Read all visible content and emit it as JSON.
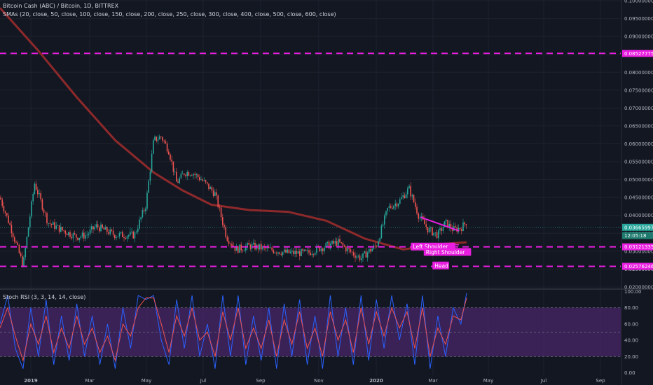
{
  "header": {
    "title": "Bitcoin Cash (ABC) / Bitcoin, 1D, BITTREX",
    "sma_label": "SMAs (20, close, 50, close, 100, close, 150, close, 200, close, 250, close, 300, close, 400, close, 500, close, 600, close)"
  },
  "rsi_panel": {
    "title": "Stoch RSI (3, 3, 14, 14, close)"
  },
  "colors": {
    "background": "#131722",
    "grid": "#1e222d",
    "up_candle": "#26a69a",
    "down_candle": "#ef5350",
    "dashed_level": "#e91ee0",
    "sma_long": "#9b2b2b",
    "stoch_k": "#2962ff",
    "stoch_d": "#ef5350",
    "rsi_band": "#5b2c83",
    "label_bg": "#e91ee0"
  },
  "chart_data": [
    {
      "type": "candlestick",
      "xlabel": "",
      "ylabel": "",
      "x_ticks": [
        "2019",
        "Mar",
        "May",
        "Jul",
        "Sep",
        "Nov",
        "2020",
        "Mar",
        "May",
        "Jul",
        "Sep"
      ],
      "y_ticks": [
        "0.10000000",
        "0.09500000",
        "0.09000000",
        "0.08500000",
        "0.08000000",
        "0.07500000",
        "0.07000000",
        "0.06500000",
        "0.06000000",
        "0.05500000",
        "0.05000000",
        "0.04500000",
        "0.04000000",
        "0.03500000",
        "0.03000000",
        "0.02500000",
        "0.02000000"
      ],
      "ylim": [
        0.0196,
        0.1002
      ],
      "price_path": [
        [
          0,
          0.045
        ],
        [
          0.6,
          0.036
        ],
        [
          1.2,
          0.026
        ],
        [
          1.8,
          0.049
        ],
        [
          2.5,
          0.038
        ],
        [
          3.2,
          0.036
        ],
        [
          4.0,
          0.034
        ],
        [
          4.5,
          0.0345
        ],
        [
          5.0,
          0.037
        ],
        [
          6.0,
          0.0345
        ],
        [
          7.0,
          0.0345
        ],
        [
          7.6,
          0.043
        ],
        [
          8.0,
          0.061
        ],
        [
          8.4,
          0.062
        ],
        [
          8.8,
          0.058
        ],
        [
          9.2,
          0.049
        ],
        [
          9.6,
          0.052
        ],
        [
          10.0,
          0.052
        ],
        [
          10.5,
          0.05
        ],
        [
          11.2,
          0.046
        ],
        [
          11.8,
          0.034
        ],
        [
          12.3,
          0.0305
        ],
        [
          13.0,
          0.0315
        ],
        [
          14.0,
          0.0305
        ],
        [
          15.0,
          0.0295
        ],
        [
          16.0,
          0.0295
        ],
        [
          17.0,
          0.0315
        ],
        [
          17.6,
          0.0325
        ],
        [
          18.2,
          0.03
        ],
        [
          18.8,
          0.028
        ],
        [
          19.2,
          0.03
        ],
        [
          19.6,
          0.0315
        ],
        [
          20.2,
          0.042
        ],
        [
          20.8,
          0.044
        ],
        [
          21.3,
          0.0475
        ],
        [
          21.8,
          0.04
        ],
        [
          22.3,
          0.036
        ],
        [
          22.8,
          0.0345
        ],
        [
          23.2,
          0.038
        ],
        [
          23.6,
          0.036
        ],
        [
          24.0,
          0.0365
        ],
        [
          24.3,
          0.0382
        ]
      ],
      "series": [
        {
          "name": "SMA",
          "values": [
            [
              0,
              0.098
            ],
            [
              2,
              0.086
            ],
            [
              4,
              0.073
            ],
            [
              6,
              0.061
            ],
            [
              8,
              0.052
            ],
            [
              9.5,
              0.047
            ],
            [
              11,
              0.043
            ],
            [
              13,
              0.0415
            ],
            [
              15,
              0.041
            ],
            [
              17,
              0.0385
            ],
            [
              19,
              0.0335
            ],
            [
              21,
              0.0305
            ],
            [
              23,
              0.032
            ],
            [
              24.3,
              0.0325
            ]
          ]
        }
      ],
      "levels": [
        {
          "value": 0.08527775,
          "label": "0.08527775"
        },
        {
          "value": 0.03121335,
          "label": "0.03121335"
        },
        {
          "value": 0.02576246,
          "label": "0.02576246"
        }
      ],
      "price_labels": [
        {
          "value": 0.03665997,
          "label": "0.03665997"
        },
        {
          "value": 0.03436,
          "label": "12:05:18"
        }
      ],
      "annotations": [
        {
          "text": "Left Shoulder",
          "x": 22.55,
          "y": 0.0312
        },
        {
          "text": "Right Shoulder",
          "x": 23.3,
          "y": 0.0297
        },
        {
          "text": "Head",
          "x": 22.95,
          "y": 0.0259
        }
      ]
    },
    {
      "type": "line",
      "title": "Stoch RSI (3, 3, 14, 14, close)",
      "ylim": [
        -3,
        102
      ],
      "y_ticks": [
        "100.00",
        "80.00",
        "60.00",
        "40.00",
        "20.00",
        "0.00"
      ],
      "band": [
        20,
        80
      ],
      "series": [
        {
          "name": "K",
          "values": [
            [
              0,
              60
            ],
            [
              0.4,
              95
            ],
            [
              0.8,
              30
            ],
            [
              1.2,
              5
            ],
            [
              1.6,
              80
            ],
            [
              2.0,
              20
            ],
            [
              2.4,
              90
            ],
            [
              2.8,
              10
            ],
            [
              3.2,
              70
            ],
            [
              3.6,
              15
            ],
            [
              4.0,
              85
            ],
            [
              4.4,
              20
            ],
            [
              4.8,
              70
            ],
            [
              5.2,
              10
            ],
            [
              5.6,
              60
            ],
            [
              6.0,
              5
            ],
            [
              6.4,
              80
            ],
            [
              6.8,
              30
            ],
            [
              7.2,
              95
            ],
            [
              7.6,
              90
            ],
            [
              8.0,
              95
            ],
            [
              8.4,
              40
            ],
            [
              8.8,
              10
            ],
            [
              9.2,
              90
            ],
            [
              9.6,
              30
            ],
            [
              10.0,
              95
            ],
            [
              10.4,
              20
            ],
            [
              10.8,
              60
            ],
            [
              11.2,
              5
            ],
            [
              11.6,
              95
            ],
            [
              12.0,
              20
            ],
            [
              12.4,
              95
            ],
            [
              12.8,
              10
            ],
            [
              13.2,
              70
            ],
            [
              13.6,
              15
            ],
            [
              14.0,
              80
            ],
            [
              14.4,
              5
            ],
            [
              14.8,
              85
            ],
            [
              15.2,
              20
            ],
            [
              15.6,
              90
            ],
            [
              16.0,
              10
            ],
            [
              16.4,
              70
            ],
            [
              16.8,
              5
            ],
            [
              17.2,
              95
            ],
            [
              17.6,
              20
            ],
            [
              18.0,
              80
            ],
            [
              18.4,
              10
            ],
            [
              18.8,
              95
            ],
            [
              19.2,
              15
            ],
            [
              19.6,
              90
            ],
            [
              20.0,
              30
            ],
            [
              20.4,
              95
            ],
            [
              20.8,
              40
            ],
            [
              21.2,
              85
            ],
            [
              21.6,
              10
            ],
            [
              22.0,
              95
            ],
            [
              22.4,
              5
            ],
            [
              22.8,
              70
            ],
            [
              23.2,
              20
            ],
            [
              23.6,
              80
            ],
            [
              24.0,
              60
            ],
            [
              24.3,
              98
            ]
          ]
        },
        {
          "name": "D",
          "values": [
            [
              0,
              55
            ],
            [
              0.4,
              80
            ],
            [
              0.8,
              45
            ],
            [
              1.2,
              15
            ],
            [
              1.6,
              60
            ],
            [
              2.0,
              35
            ],
            [
              2.4,
              70
            ],
            [
              2.8,
              25
            ],
            [
              3.2,
              55
            ],
            [
              3.6,
              30
            ],
            [
              4.0,
              70
            ],
            [
              4.4,
              35
            ],
            [
              4.8,
              55
            ],
            [
              5.2,
              25
            ],
            [
              5.6,
              45
            ],
            [
              6.0,
              15
            ],
            [
              6.4,
              60
            ],
            [
              6.8,
              45
            ],
            [
              7.2,
              80
            ],
            [
              7.6,
              92
            ],
            [
              8.0,
              92
            ],
            [
              8.4,
              60
            ],
            [
              8.8,
              25
            ],
            [
              9.2,
              70
            ],
            [
              9.6,
              45
            ],
            [
              10.0,
              80
            ],
            [
              10.4,
              40
            ],
            [
              10.8,
              50
            ],
            [
              11.2,
              20
            ],
            [
              11.6,
              75
            ],
            [
              12.0,
              40
            ],
            [
              12.4,
              80
            ],
            [
              12.8,
              30
            ],
            [
              13.2,
              55
            ],
            [
              13.6,
              30
            ],
            [
              14.0,
              65
            ],
            [
              14.4,
              20
            ],
            [
              14.8,
              65
            ],
            [
              15.2,
              35
            ],
            [
              15.6,
              75
            ],
            [
              16.0,
              30
            ],
            [
              16.4,
              55
            ],
            [
              16.8,
              20
            ],
            [
              17.2,
              75
            ],
            [
              17.6,
              40
            ],
            [
              18.0,
              65
            ],
            [
              18.4,
              25
            ],
            [
              18.8,
              80
            ],
            [
              19.2,
              35
            ],
            [
              19.6,
              75
            ],
            [
              20.0,
              45
            ],
            [
              20.4,
              80
            ],
            [
              20.8,
              55
            ],
            [
              21.2,
              75
            ],
            [
              21.6,
              30
            ],
            [
              22.0,
              80
            ],
            [
              22.4,
              20
            ],
            [
              22.8,
              55
            ],
            [
              23.2,
              35
            ],
            [
              23.6,
              70
            ],
            [
              24.0,
              65
            ],
            [
              24.3,
              92
            ]
          ]
        }
      ]
    }
  ]
}
